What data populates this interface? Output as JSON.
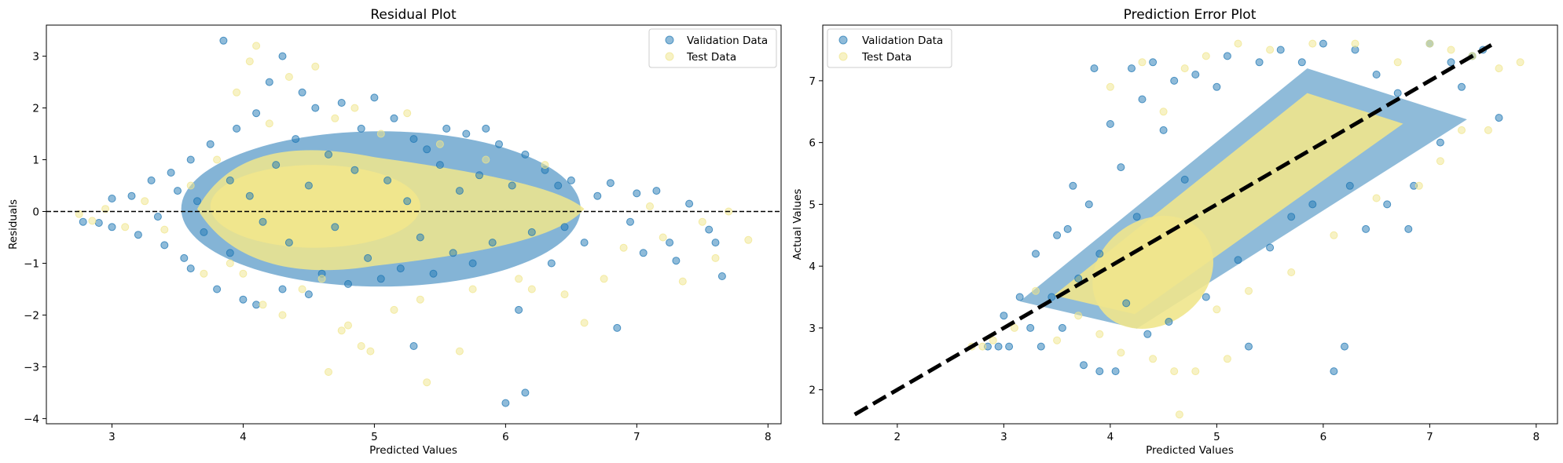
{
  "colors": {
    "validation": "#1f77b4",
    "test": "#f0e68c"
  },
  "charts": {
    "residual": {
      "title": "Residual Plot",
      "xlabel": "Predicted Values",
      "ylabel": "Residuals",
      "legend": {
        "validation": "Validation Data",
        "test": "Test Data"
      }
    },
    "prediction": {
      "title": "Prediction Error Plot",
      "xlabel": "Predicted Values",
      "ylabel": "Actual Values",
      "legend": {
        "validation": "Validation Data",
        "test": "Test Data"
      }
    }
  },
  "chart_data": [
    {
      "type": "scatter",
      "title": "Residual Plot",
      "xlabel": "Predicted Values",
      "ylabel": "Residuals",
      "xlim": [
        2.5,
        8.1
      ],
      "ylim": [
        -4.1,
        3.6
      ],
      "xticks": [
        3,
        4,
        5,
        6,
        7,
        8
      ],
      "yticks": [
        -4,
        -3,
        -2,
        -1,
        0,
        1,
        2,
        3
      ],
      "grid": false,
      "legend_position": "top-right",
      "reference_line": {
        "y": 0,
        "style": "dashed",
        "color": "#000000"
      },
      "series": [
        {
          "name": "Validation Data",
          "color": "#1f77b4",
          "alpha": 0.5,
          "points": [
            [
              2.78,
              -0.2
            ],
            [
              2.9,
              -0.22
            ],
            [
              3.0,
              -0.3
            ],
            [
              3.0,
              0.25
            ],
            [
              3.15,
              0.3
            ],
            [
              3.2,
              -0.45
            ],
            [
              3.3,
              0.6
            ],
            [
              3.35,
              -0.1
            ],
            [
              3.45,
              0.75
            ],
            [
              3.4,
              -0.65
            ],
            [
              3.5,
              0.4
            ],
            [
              3.55,
              -0.9
            ],
            [
              3.6,
              1.0
            ],
            [
              3.6,
              -1.1
            ],
            [
              3.65,
              0.2
            ],
            [
              3.7,
              -0.4
            ],
            [
              3.75,
              1.3
            ],
            [
              3.8,
              -1.5
            ],
            [
              3.85,
              3.3
            ],
            [
              3.9,
              0.6
            ],
            [
              3.9,
              -0.8
            ],
            [
              3.95,
              1.6
            ],
            [
              4.0,
              -1.7
            ],
            [
              4.05,
              0.3
            ],
            [
              4.1,
              -1.8
            ],
            [
              4.1,
              1.9
            ],
            [
              4.15,
              -0.2
            ],
            [
              4.2,
              2.5
            ],
            [
              4.25,
              0.9
            ],
            [
              4.3,
              -1.5
            ],
            [
              4.3,
              3.0
            ],
            [
              4.35,
              -0.6
            ],
            [
              4.4,
              1.4
            ],
            [
              4.45,
              2.3
            ],
            [
              4.5,
              -1.6
            ],
            [
              4.5,
              0.5
            ],
            [
              4.55,
              2.0
            ],
            [
              4.6,
              -1.2
            ],
            [
              4.65,
              1.1
            ],
            [
              4.7,
              -0.3
            ],
            [
              4.75,
              2.1
            ],
            [
              4.8,
              -1.4
            ],
            [
              4.85,
              0.8
            ],
            [
              4.9,
              1.6
            ],
            [
              4.95,
              -0.9
            ],
            [
              5.0,
              2.2
            ],
            [
              5.05,
              -1.3
            ],
            [
              5.1,
              0.6
            ],
            [
              5.15,
              1.8
            ],
            [
              5.2,
              -1.1
            ],
            [
              5.25,
              0.2
            ],
            [
              5.3,
              -2.6
            ],
            [
              5.3,
              1.4
            ],
            [
              5.35,
              -0.5
            ],
            [
              5.4,
              1.2
            ],
            [
              5.45,
              -1.2
            ],
            [
              5.5,
              0.9
            ],
            [
              5.55,
              1.6
            ],
            [
              5.6,
              -0.8
            ],
            [
              5.65,
              0.4
            ],
            [
              5.7,
              1.5
            ],
            [
              5.75,
              -1.0
            ],
            [
              5.8,
              0.7
            ],
            [
              5.85,
              1.6
            ],
            [
              5.9,
              -0.6
            ],
            [
              5.95,
              1.3
            ],
            [
              6.0,
              -3.7
            ],
            [
              6.05,
              0.5
            ],
            [
              6.1,
              -1.9
            ],
            [
              6.15,
              1.1
            ],
            [
              6.15,
              -3.5
            ],
            [
              6.2,
              -0.4
            ],
            [
              6.3,
              0.8
            ],
            [
              6.35,
              -1.0
            ],
            [
              6.4,
              0.5
            ],
            [
              6.45,
              -0.3
            ],
            [
              6.5,
              0.6
            ],
            [
              6.6,
              -0.6
            ],
            [
              6.7,
              0.3
            ],
            [
              6.8,
              0.55
            ],
            [
              6.85,
              -2.25
            ],
            [
              6.95,
              -0.2
            ],
            [
              7.0,
              0.35
            ],
            [
              7.05,
              -0.8
            ],
            [
              7.15,
              0.4
            ],
            [
              7.25,
              -0.6
            ],
            [
              7.3,
              -0.95
            ],
            [
              7.4,
              0.15
            ],
            [
              7.55,
              -0.35
            ],
            [
              7.6,
              -0.6
            ],
            [
              7.65,
              -1.25
            ]
          ]
        },
        {
          "name": "Test Data",
          "color": "#f0e68c",
          "alpha": 0.5,
          "points": [
            [
              2.75,
              -0.05
            ],
            [
              2.85,
              -0.18
            ],
            [
              2.95,
              0.05
            ],
            [
              3.1,
              -0.3
            ],
            [
              3.25,
              0.2
            ],
            [
              3.4,
              -0.35
            ],
            [
              3.6,
              0.5
            ],
            [
              3.7,
              -1.2
            ],
            [
              3.8,
              1.0
            ],
            [
              3.9,
              -1.0
            ],
            [
              3.95,
              2.3
            ],
            [
              4.0,
              -1.2
            ],
            [
              4.05,
              2.9
            ],
            [
              4.1,
              3.2
            ],
            [
              4.15,
              -1.8
            ],
            [
              4.2,
              1.7
            ],
            [
              4.3,
              -2.0
            ],
            [
              4.35,
              2.6
            ],
            [
              4.45,
              -1.5
            ],
            [
              4.55,
              2.8
            ],
            [
              4.6,
              -1.3
            ],
            [
              4.65,
              -3.1
            ],
            [
              4.7,
              1.8
            ],
            [
              4.75,
              -2.3
            ],
            [
              4.8,
              -2.2
            ],
            [
              4.85,
              2.0
            ],
            [
              4.9,
              -2.6
            ],
            [
              4.97,
              -2.7
            ],
            [
              5.05,
              1.5
            ],
            [
              5.15,
              -1.9
            ],
            [
              5.25,
              1.9
            ],
            [
              5.35,
              -1.7
            ],
            [
              5.4,
              -3.3
            ],
            [
              5.5,
              1.3
            ],
            [
              5.65,
              -2.7
            ],
            [
              5.75,
              -1.5
            ],
            [
              5.85,
              1.0
            ],
            [
              6.1,
              -1.3
            ],
            [
              6.2,
              -1.5
            ],
            [
              6.3,
              0.9
            ],
            [
              6.45,
              -1.6
            ],
            [
              6.6,
              -2.15
            ],
            [
              6.75,
              -1.3
            ],
            [
              6.9,
              -0.7
            ],
            [
              7.1,
              0.1
            ],
            [
              7.2,
              -0.5
            ],
            [
              7.35,
              -1.35
            ],
            [
              7.5,
              -0.2
            ],
            [
              7.6,
              -0.9
            ],
            [
              7.7,
              0.0
            ],
            [
              7.85,
              -0.55
            ]
          ]
        }
      ]
    },
    {
      "type": "scatter",
      "title": "Prediction Error Plot",
      "xlabel": "Predicted Values",
      "ylabel": "Actual Values",
      "xlim": [
        1.3,
        8.2
      ],
      "ylim": [
        1.45,
        7.9
      ],
      "xticks": [
        2,
        3,
        4,
        5,
        6,
        7,
        8
      ],
      "yticks": [
        2,
        3,
        4,
        5,
        6,
        7
      ],
      "grid": false,
      "legend_position": "top-left",
      "reference_line": {
        "from": [
          1.6,
          1.6
        ],
        "to": [
          7.6,
          7.6
        ],
        "style": "dashed",
        "color": "#000000"
      },
      "series": [
        {
          "name": "Validation Data",
          "color": "#1f77b4",
          "alpha": 0.5,
          "points": [
            [
              2.85,
              2.7
            ],
            [
              2.95,
              2.7
            ],
            [
              3.0,
              3.2
            ],
            [
              3.05,
              2.7
            ],
            [
              3.15,
              3.5
            ],
            [
              3.25,
              3.0
            ],
            [
              3.3,
              4.2
            ],
            [
              3.35,
              2.7
            ],
            [
              3.45,
              3.5
            ],
            [
              3.5,
              4.5
            ],
            [
              3.55,
              3.0
            ],
            [
              3.6,
              4.6
            ],
            [
              3.65,
              5.3
            ],
            [
              3.7,
              3.8
            ],
            [
              3.75,
              2.4
            ],
            [
              3.8,
              5.0
            ],
            [
              3.85,
              7.2
            ],
            [
              3.9,
              2.3
            ],
            [
              3.9,
              4.2
            ],
            [
              4.0,
              6.3
            ],
            [
              4.05,
              2.3
            ],
            [
              4.1,
              5.6
            ],
            [
              4.15,
              3.4
            ],
            [
              4.2,
              7.2
            ],
            [
              4.25,
              4.8
            ],
            [
              4.3,
              6.7
            ],
            [
              4.35,
              2.9
            ],
            [
              4.4,
              7.3
            ],
            [
              4.5,
              6.2
            ],
            [
              4.55,
              3.1
            ],
            [
              4.6,
              7.0
            ],
            [
              4.7,
              5.4
            ],
            [
              4.8,
              7.1
            ],
            [
              4.9,
              3.5
            ],
            [
              5.0,
              6.9
            ],
            [
              5.1,
              7.4
            ],
            [
              5.2,
              4.1
            ],
            [
              5.3,
              2.7
            ],
            [
              5.4,
              7.3
            ],
            [
              5.5,
              4.3
            ],
            [
              5.6,
              7.5
            ],
            [
              5.7,
              4.8
            ],
            [
              5.8,
              7.3
            ],
            [
              5.9,
              5.0
            ],
            [
              6.0,
              7.6
            ],
            [
              6.1,
              2.3
            ],
            [
              6.2,
              2.7
            ],
            [
              6.25,
              5.3
            ],
            [
              6.3,
              7.5
            ],
            [
              6.4,
              4.6
            ],
            [
              6.5,
              7.1
            ],
            [
              6.6,
              5.0
            ],
            [
              6.7,
              6.8
            ],
            [
              6.8,
              4.6
            ],
            [
              6.85,
              5.3
            ],
            [
              7.0,
              7.6
            ],
            [
              7.1,
              6.0
            ],
            [
              7.2,
              7.3
            ],
            [
              7.3,
              6.9
            ],
            [
              7.4,
              7.4
            ],
            [
              7.5,
              7.5
            ],
            [
              7.65,
              6.4
            ]
          ]
        },
        {
          "name": "Test Data",
          "color": "#f0e68c",
          "alpha": 0.5,
          "points": [
            [
              2.7,
              2.7
            ],
            [
              2.8,
              2.7
            ],
            [
              2.9,
              2.8
            ],
            [
              3.1,
              3.0
            ],
            [
              3.3,
              3.6
            ],
            [
              3.5,
              2.8
            ],
            [
              3.7,
              3.2
            ],
            [
              3.9,
              2.9
            ],
            [
              4.0,
              6.9
            ],
            [
              4.1,
              2.6
            ],
            [
              4.3,
              7.3
            ],
            [
              4.4,
              2.5
            ],
            [
              4.5,
              6.5
            ],
            [
              4.6,
              2.3
            ],
            [
              4.65,
              1.6
            ],
            [
              4.7,
              7.2
            ],
            [
              4.8,
              2.3
            ],
            [
              4.9,
              7.4
            ],
            [
              5.0,
              3.3
            ],
            [
              5.1,
              2.5
            ],
            [
              5.2,
              7.6
            ],
            [
              5.3,
              3.6
            ],
            [
              5.5,
              7.5
            ],
            [
              5.7,
              3.9
            ],
            [
              5.9,
              7.6
            ],
            [
              6.1,
              4.5
            ],
            [
              6.3,
              7.6
            ],
            [
              6.5,
              5.1
            ],
            [
              6.7,
              7.3
            ],
            [
              6.9,
              5.3
            ],
            [
              7.0,
              7.6
            ],
            [
              7.1,
              5.7
            ],
            [
              7.2,
              7.5
            ],
            [
              7.3,
              6.2
            ],
            [
              7.4,
              7.4
            ],
            [
              7.55,
              6.2
            ],
            [
              7.65,
              7.2
            ],
            [
              7.85,
              7.3
            ]
          ]
        }
      ]
    }
  ]
}
